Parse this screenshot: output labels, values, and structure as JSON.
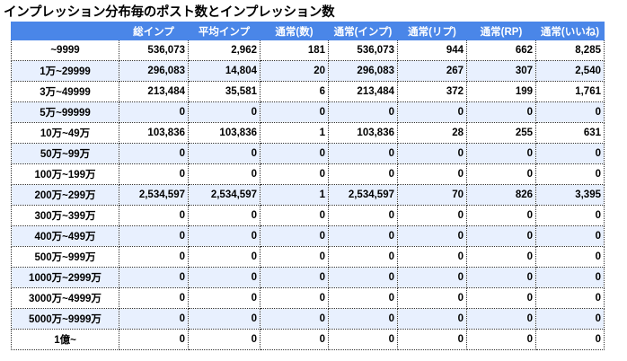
{
  "title": "インプレッション分布毎のポスト数とインプレッション数",
  "headers": [
    "",
    "総インプ",
    "平均インプ",
    "通常(数)",
    "通常(インプ)",
    "通常(リプ)",
    "通常(RP)",
    "通常(いいね)"
  ],
  "rows": [
    {
      "label": "~9999",
      "values": [
        "536,073",
        "2,962",
        "181",
        "536,073",
        "944",
        "662",
        "8,285"
      ]
    },
    {
      "label": "1万~29999",
      "values": [
        "296,083",
        "14,804",
        "20",
        "296,083",
        "267",
        "307",
        "2,540"
      ]
    },
    {
      "label": "3万~49999",
      "values": [
        "213,484",
        "35,581",
        "6",
        "213,484",
        "372",
        "199",
        "1,761"
      ]
    },
    {
      "label": "5万~99999",
      "values": [
        "0",
        "0",
        "0",
        "0",
        "0",
        "0",
        "0"
      ]
    },
    {
      "label": "10万~49万",
      "values": [
        "103,836",
        "103,836",
        "1",
        "103,836",
        "28",
        "255",
        "631"
      ]
    },
    {
      "label": "50万~99万",
      "values": [
        "0",
        "0",
        "0",
        "0",
        "0",
        "0",
        "0"
      ]
    },
    {
      "label": "100万~199万",
      "values": [
        "0",
        "0",
        "0",
        "0",
        "0",
        "0",
        "0"
      ]
    },
    {
      "label": "200万~299万",
      "values": [
        "2,534,597",
        "2,534,597",
        "1",
        "2,534,597",
        "70",
        "826",
        "3,395"
      ]
    },
    {
      "label": "300万~399万",
      "values": [
        "0",
        "0",
        "0",
        "0",
        "0",
        "0",
        "0"
      ]
    },
    {
      "label": "400万~499万",
      "values": [
        "0",
        "0",
        "0",
        "0",
        "0",
        "0",
        "0"
      ]
    },
    {
      "label": "500万~999万",
      "values": [
        "0",
        "0",
        "0",
        "0",
        "0",
        "0",
        "0"
      ]
    },
    {
      "label": "1000万~2999万",
      "values": [
        "0",
        "0",
        "0",
        "0",
        "0",
        "0",
        "0"
      ]
    },
    {
      "label": "3000万~4999万",
      "values": [
        "0",
        "0",
        "0",
        "0",
        "0",
        "0",
        "0"
      ]
    },
    {
      "label": "5000万~9999万",
      "values": [
        "0",
        "0",
        "0",
        "0",
        "0",
        "0",
        "0"
      ]
    },
    {
      "label": "1億~",
      "values": [
        "0",
        "0",
        "0",
        "0",
        "0",
        "0",
        "0"
      ]
    }
  ],
  "colors": {
    "header_bg": "#4a86e8",
    "header_text": "#ffffff",
    "alt_row_bg": "#e8f0fe"
  }
}
